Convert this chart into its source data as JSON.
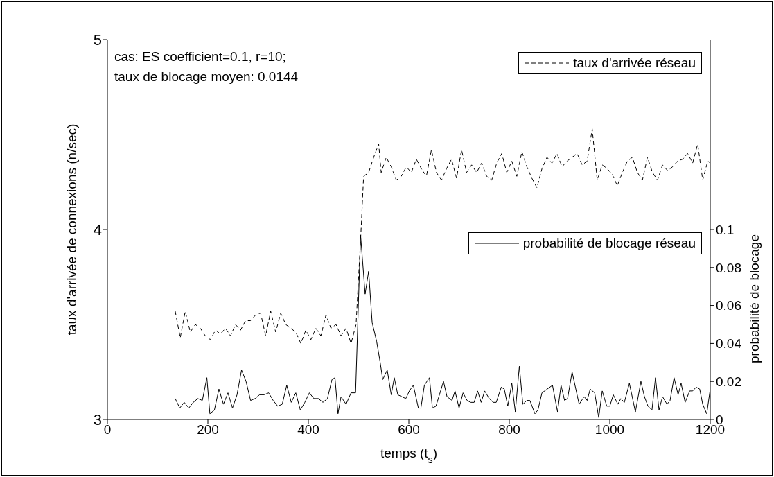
{
  "chart_data": {
    "type": "line",
    "xlabel": "temps (t$_{s}$)",
    "ylabel": "taux d'arrivée de connexions (n/sec)",
    "y2label": "probabilité de blocage",
    "annotations": [
      "cas: ES coefficient=0.1, r=10;",
      "taux de blocage moyen: 0.0144"
    ],
    "xlim": [
      0,
      1200
    ],
    "xticks": [
      0,
      200,
      400,
      600,
      800,
      1000,
      1200
    ],
    "ylim": [
      3,
      5
    ],
    "yticks": [
      3,
      4,
      5
    ],
    "y2lim": [
      0,
      0.2
    ],
    "y2ticks": [
      0,
      0.02,
      0.04,
      0.06,
      0.08,
      0.1
    ],
    "grid": false,
    "legend": "top right",
    "marker": "none",
    "series": [
      {
        "name": "taux d'arrivée réseau",
        "color": "#000000",
        "line_style": "dashed",
        "x": [
          135,
          145,
          155,
          165,
          175,
          185,
          195,
          205,
          215,
          225,
          235,
          245,
          255,
          265,
          275,
          285,
          295,
          305,
          315,
          325,
          335,
          345,
          355,
          365,
          375,
          385,
          395,
          405,
          415,
          425,
          435,
          445,
          455,
          465,
          475,
          485,
          495,
          505,
          510,
          520,
          530,
          540,
          545,
          555,
          565,
          575,
          585,
          595,
          605,
          615,
          625,
          635,
          645,
          655,
          665,
          675,
          685,
          695,
          705,
          715,
          725,
          735,
          745,
          755,
          765,
          775,
          785,
          795,
          805,
          815,
          825,
          835,
          845,
          855,
          865,
          875,
          885,
          895,
          905,
          915,
          925,
          935,
          945,
          955,
          965,
          975,
          985,
          995,
          1005,
          1015,
          1025,
          1035,
          1045,
          1055,
          1065,
          1075,
          1085,
          1095,
          1105,
          1115,
          1125,
          1135,
          1145,
          1155,
          1165,
          1175,
          1185,
          1195,
          1200
        ],
        "values": [
          3.57,
          3.43,
          3.57,
          3.46,
          3.5,
          3.48,
          3.44,
          3.42,
          3.47,
          3.45,
          3.48,
          3.44,
          3.5,
          3.47,
          3.52,
          3.52,
          3.55,
          3.56,
          3.44,
          3.57,
          3.46,
          3.56,
          3.5,
          3.48,
          3.46,
          3.4,
          3.47,
          3.42,
          3.48,
          3.44,
          3.55,
          3.48,
          3.5,
          3.44,
          3.48,
          3.4,
          3.5,
          4.0,
          4.28,
          4.3,
          4.38,
          4.45,
          4.3,
          4.38,
          4.33,
          4.26,
          4.28,
          4.33,
          4.3,
          4.37,
          4.32,
          4.28,
          4.42,
          4.3,
          4.26,
          4.32,
          4.37,
          4.27,
          4.42,
          4.3,
          4.34,
          4.3,
          4.35,
          4.28,
          4.26,
          4.35,
          4.4,
          4.3,
          4.36,
          4.28,
          4.41,
          4.33,
          4.27,
          4.22,
          4.32,
          4.38,
          4.35,
          4.4,
          4.33,
          4.36,
          4.38,
          4.4,
          4.34,
          4.36,
          4.53,
          4.26,
          4.34,
          4.32,
          4.29,
          4.23,
          4.3,
          4.36,
          4.38,
          4.3,
          4.26,
          4.38,
          4.3,
          4.26,
          4.34,
          4.31,
          4.33,
          4.36,
          4.37,
          4.4,
          4.35,
          4.45,
          4.26,
          4.36,
          4.35
        ]
      },
      {
        "name": "probabilité de blocage réseau",
        "color": "#000000",
        "line_style": "solid",
        "axis": "y2",
        "x": [
          135,
          144,
          153,
          162,
          171,
          180,
          189,
          198,
          204,
          213,
          222,
          231,
          240,
          249,
          258,
          267,
          276,
          285,
          294,
          303,
          312,
          321,
          330,
          339,
          348,
          357,
          366,
          375,
          384,
          393,
          402,
          411,
          420,
          429,
          438,
          447,
          453,
          459,
          465,
          475,
          485,
          494,
          504,
          513,
          520,
          527,
          536,
          543,
          548,
          557,
          565,
          571,
          578,
          594,
          601,
          609,
          619,
          624,
          631,
          641,
          647,
          654,
          669,
          676,
          686,
          692,
          700,
          708,
          716,
          723,
          730,
          737,
          744,
          751,
          760,
          768,
          774,
          784,
          790,
          797,
          805,
          812,
          820,
          827,
          835,
          841,
          851,
          857,
          865,
          886,
          896,
          903,
          910,
          916,
          925,
          939,
          949,
          955,
          961,
          970,
          978,
          985,
          994,
          1000,
          1007,
          1016,
          1022,
          1029,
          1039,
          1051,
          1062,
          1069,
          1076,
          1084,
          1091,
          1098,
          1105,
          1114,
          1120,
          1128,
          1136,
          1142,
          1150,
          1159,
          1165,
          1172,
          1179,
          1185,
          1193,
          1200
        ],
        "values": [
          0.011,
          0.006,
          0.009,
          0.006,
          0.009,
          0.011,
          0.01,
          0.022,
          0.003,
          0.005,
          0.016,
          0.008,
          0.014,
          0.006,
          0.013,
          0.026,
          0.02,
          0.01,
          0.011,
          0.013,
          0.013,
          0.014,
          0.01,
          0.007,
          0.008,
          0.018,
          0.009,
          0.014,
          0.005,
          0.009,
          0.014,
          0.011,
          0.011,
          0.009,
          0.011,
          0.021,
          0.022,
          0.003,
          0.012,
          0.008,
          0.014,
          0.014,
          0.097,
          0.066,
          0.078,
          0.051,
          0.041,
          0.03,
          0.021,
          0.026,
          0.013,
          0.022,
          0.013,
          0.011,
          0.015,
          0.018,
          0.006,
          0.006,
          0.018,
          0.022,
          0.006,
          0.007,
          0.02,
          0.012,
          0.01,
          0.015,
          0.006,
          0.014,
          0.01,
          0.009,
          0.009,
          0.015,
          0.009,
          0.015,
          0.011,
          0.009,
          0.009,
          0.017,
          0.016,
          0.007,
          0.019,
          0.004,
          0.028,
          0.008,
          0.01,
          0.01,
          0.003,
          0.005,
          0.014,
          0.018,
          0.004,
          0.018,
          0.01,
          0.011,
          0.025,
          0.008,
          0.012,
          0.01,
          0.016,
          0.014,
          0.001,
          0.015,
          0.007,
          0.007,
          0.013,
          0.008,
          0.011,
          0.009,
          0.019,
          0.004,
          0.02,
          0.012,
          0.007,
          0.005,
          0.022,
          0.005,
          0.012,
          0.008,
          0.01,
          0.022,
          0.013,
          0.019,
          0.009,
          0.015,
          0.015,
          0.017,
          0.016,
          0.008,
          0.003,
          0.016
        ]
      }
    ]
  }
}
